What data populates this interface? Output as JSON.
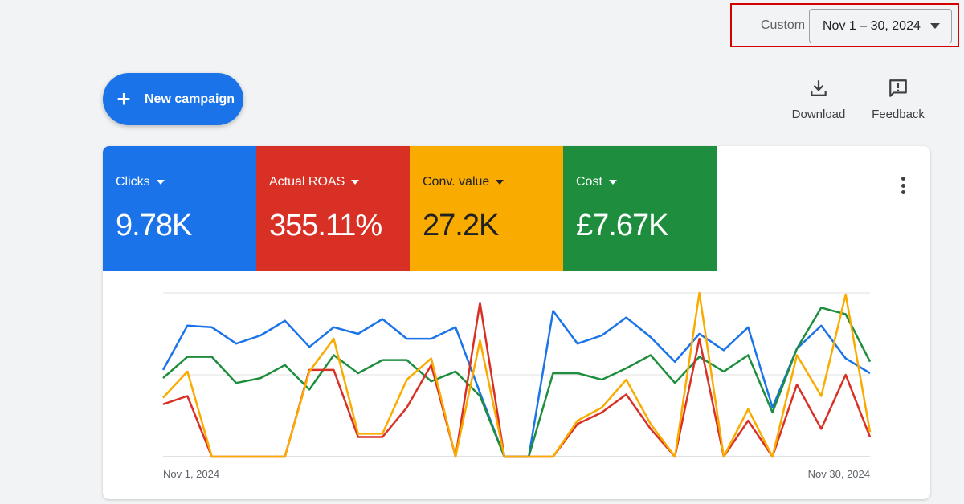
{
  "date_range": {
    "mode_label": "Custom",
    "selected": "Nov 1 – 30, 2024"
  },
  "new_campaign": {
    "label": "New campaign",
    "icon": "plus-icon"
  },
  "actions": [
    {
      "label": "Download",
      "icon": "download-icon"
    },
    {
      "label": "Feedback",
      "icon": "feedback-icon"
    }
  ],
  "metrics": [
    {
      "label": "Clicks",
      "value": "9.78K",
      "color": "#1a73e8"
    },
    {
      "label": "Actual ROAS",
      "value": "355.11%",
      "color": "#d93025"
    },
    {
      "label": "Conv. value",
      "value": "27.2K",
      "color": "#f9ab00"
    },
    {
      "label": "Cost",
      "value": "£7.67K",
      "color": "#1e8e3e"
    }
  ],
  "chart_data": {
    "type": "line",
    "x_start_label": "Nov 1, 2024",
    "x_end_label": "Nov 30, 2024",
    "ylim": [
      0,
      1
    ],
    "grid": true,
    "normalized": true,
    "series": [
      {
        "color": "#1a73e8",
        "values": [
          0.53,
          0.8,
          0.79,
          0.69,
          0.74,
          0.83,
          0.67,
          0.79,
          0.75,
          0.84,
          0.72,
          0.72,
          0.79,
          0.39,
          0.0,
          0.0,
          0.89,
          0.69,
          0.74,
          0.85,
          0.73,
          0.58,
          0.75,
          0.65,
          0.79,
          0.3,
          0.66,
          0.8,
          0.6,
          0.51
        ]
      },
      {
        "color": "#1e8e3e",
        "values": [
          0.48,
          0.61,
          0.61,
          0.45,
          0.48,
          0.56,
          0.41,
          0.62,
          0.51,
          0.59,
          0.59,
          0.46,
          0.52,
          0.37,
          0.0,
          0.0,
          0.51,
          0.51,
          0.47,
          0.54,
          0.62,
          0.45,
          0.61,
          0.52,
          0.62,
          0.27,
          0.66,
          0.91,
          0.87,
          0.58
        ]
      },
      {
        "color": "#d93025",
        "values": [
          0.32,
          0.37,
          0.0,
          0.0,
          0.0,
          0.0,
          0.53,
          0.53,
          0.12,
          0.12,
          0.3,
          0.56,
          0.0,
          0.94,
          0.0,
          0.0,
          0.0,
          0.2,
          0.27,
          0.38,
          0.17,
          0.0,
          0.72,
          0.0,
          0.22,
          0.0,
          0.44,
          0.17,
          0.5,
          0.12
        ]
      },
      {
        "color": "#f9ab00",
        "values": [
          0.36,
          0.52,
          0.0,
          0.0,
          0.0,
          0.0,
          0.52,
          0.72,
          0.14,
          0.14,
          0.47,
          0.6,
          0.0,
          0.71,
          0.0,
          0.0,
          0.0,
          0.22,
          0.3,
          0.47,
          0.2,
          0.0,
          1.0,
          0.0,
          0.29,
          0.0,
          0.62,
          0.37,
          0.99,
          0.15
        ]
      }
    ]
  }
}
